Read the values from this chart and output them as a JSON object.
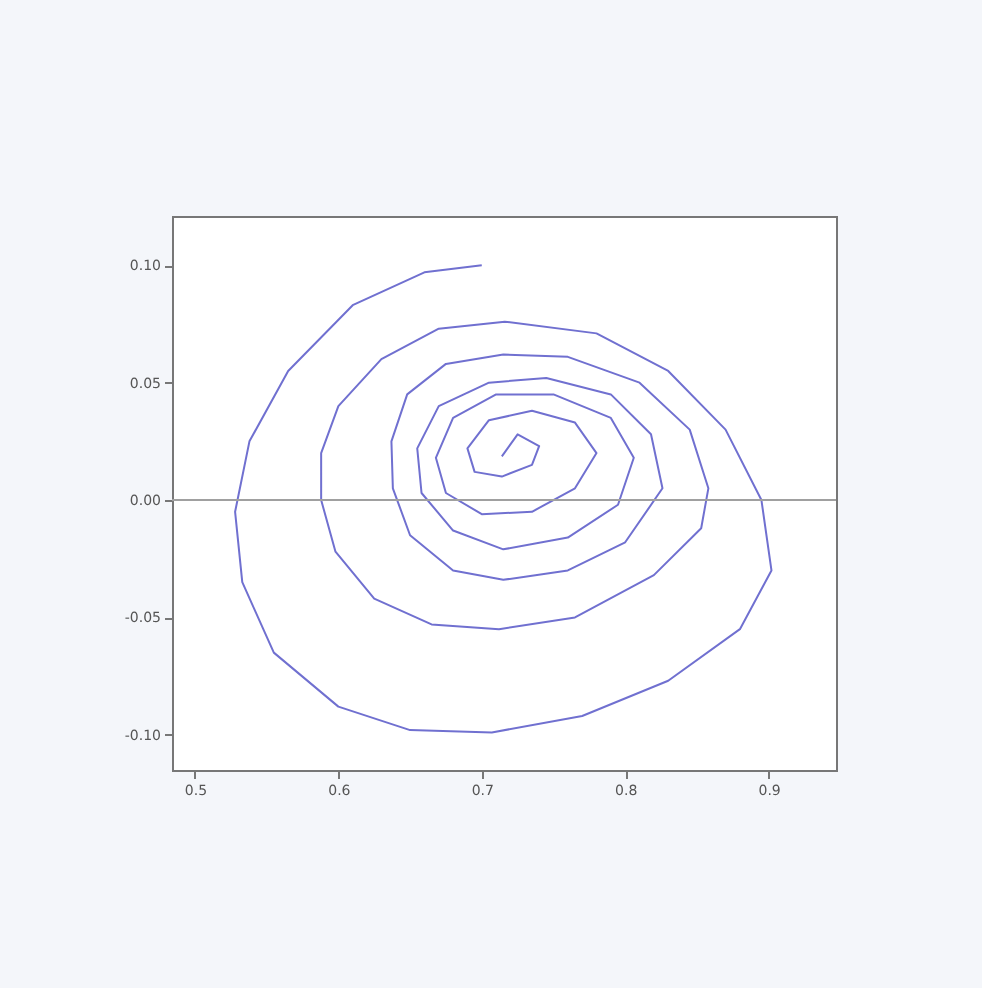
{
  "chart_data": {
    "type": "line",
    "xlim": [
      0.484,
      0.947
    ],
    "ylim": [
      -0.115,
      0.121
    ],
    "xticks": [
      0.5,
      0.6,
      0.7,
      0.8,
      0.9
    ],
    "yticks": [
      {
        "value": -0.1,
        "label": "-0.10"
      },
      {
        "value": -0.05,
        "label": "-0.05"
      },
      {
        "value": 0,
        "label": "0.00"
      },
      {
        "value": 0.05,
        "label": "0.05"
      },
      {
        "value": 0.1,
        "label": "0.10"
      }
    ],
    "grid": false,
    "marker": "none",
    "line_style": "solid",
    "ref_lines": [
      {
        "axis": "y",
        "value": 0,
        "color": "#a0a0a0"
      }
    ],
    "series": [
      {
        "color": "#7070d0",
        "x": [
          0.7,
          0.66,
          0.61,
          0.565,
          0.538,
          0.528,
          0.533,
          0.555,
          0.6,
          0.65,
          0.707,
          0.77,
          0.83,
          0.88,
          0.902,
          0.895,
          0.87,
          0.83,
          0.78,
          0.716,
          0.67,
          0.63,
          0.6,
          0.588,
          0.588,
          0.598,
          0.625,
          0.665,
          0.712,
          0.765,
          0.82,
          0.853,
          0.858,
          0.845,
          0.81,
          0.76,
          0.715,
          0.675,
          0.648,
          0.637,
          0.638,
          0.65,
          0.68,
          0.715,
          0.76,
          0.8,
          0.826,
          0.818,
          0.79,
          0.745,
          0.705,
          0.67,
          0.655,
          0.658,
          0.68,
          0.715,
          0.76,
          0.795,
          0.806,
          0.79,
          0.75,
          0.71,
          0.68,
          0.668,
          0.675,
          0.7,
          0.735,
          0.765,
          0.78,
          0.765,
          0.735,
          0.705,
          0.69,
          0.695,
          0.714,
          0.735,
          0.74,
          0.725,
          0.714
        ],
        "values": [
          0.1,
          0.097,
          0.083,
          0.055,
          0.025,
          -0.005,
          -0.035,
          -0.065,
          -0.088,
          -0.098,
          -0.099,
          -0.092,
          -0.077,
          -0.055,
          -0.03,
          0.0,
          0.03,
          0.055,
          0.071,
          0.076,
          0.073,
          0.06,
          0.04,
          0.02,
          0.0,
          -0.022,
          -0.042,
          -0.053,
          -0.055,
          -0.05,
          -0.032,
          -0.012,
          0.005,
          0.03,
          0.05,
          0.061,
          0.062,
          0.058,
          0.045,
          0.025,
          0.005,
          -0.015,
          -0.03,
          -0.034,
          -0.03,
          -0.018,
          0.005,
          0.028,
          0.045,
          0.052,
          0.05,
          0.04,
          0.022,
          0.003,
          -0.013,
          -0.021,
          -0.016,
          -0.002,
          0.018,
          0.035,
          0.045,
          0.045,
          0.035,
          0.018,
          0.003,
          -0.006,
          -0.005,
          0.005,
          0.02,
          0.033,
          0.038,
          0.034,
          0.022,
          0.012,
          0.01,
          0.015,
          0.023,
          0.028,
          0.0186
        ]
      }
    ]
  }
}
